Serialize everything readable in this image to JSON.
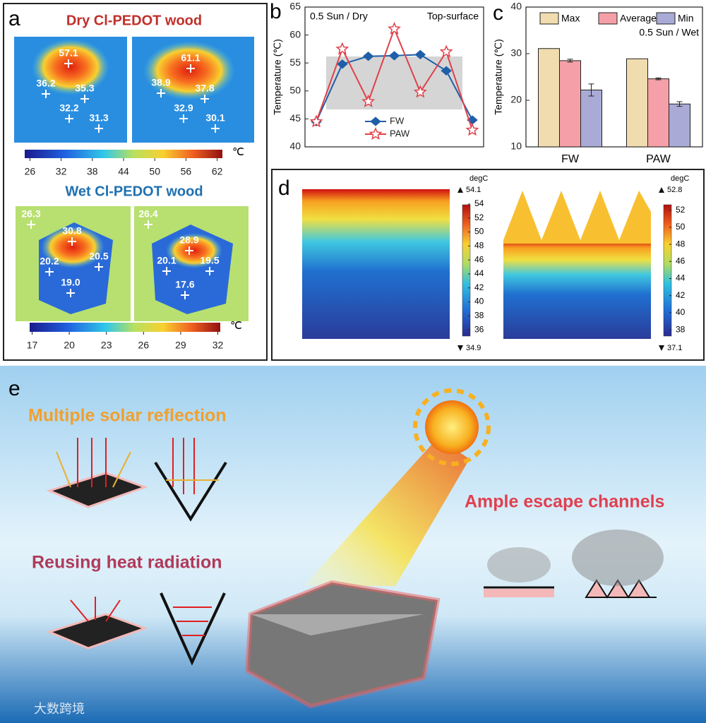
{
  "panel_a": {
    "label": "a",
    "dry": {
      "title": "Dry Cl-PEDOT wood",
      "readings": [
        "57.1",
        "36.2",
        "35.3",
        "32.2",
        "31.3",
        "61.1",
        "38.9",
        "37.8",
        "32.9",
        "30.1"
      ],
      "colorbar": {
        "lim": [
          25,
          63
        ],
        "ticks": [
          26,
          32,
          38,
          44,
          50,
          56,
          62
        ],
        "unit": "℃"
      }
    },
    "wet": {
      "title": "Wet Cl-PEDOT wood",
      "readings": [
        "26.3",
        "30.8",
        "20.2",
        "20.5",
        "19.0",
        "26.4",
        "28.9",
        "20.1",
        "19.5",
        "17.6"
      ],
      "colorbar": {
        "lim": [
          16.8,
          32.2
        ],
        "ticks": [
          17,
          20,
          23,
          26,
          29,
          32
        ],
        "unit": "℃"
      }
    }
  },
  "chart_data": [
    {
      "type": "line",
      "panel_label": "b",
      "annotations": [
        "0.5 Sun / Dry",
        "Top-surface"
      ],
      "y_label": "Temperature (℃)",
      "categories": [
        null,
        null,
        null,
        null,
        null,
        null,
        null
      ],
      "series": [
        {
          "name": "FW",
          "color": "#1f5fa8",
          "marker": "diamond",
          "values": [
            44.5,
            54.8,
            56.2,
            56.3,
            56.5,
            53.6,
            44.8
          ]
        },
        {
          "name": "PAW",
          "color": "#e0404a",
          "marker": "star",
          "values": [
            44.5,
            57.5,
            48.1,
            61.1,
            49.8,
            57.0,
            43.0
          ]
        }
      ],
      "ylim": [
        40,
        65
      ],
      "yticks": [
        40,
        45,
        50,
        55,
        60,
        65
      ]
    },
    {
      "type": "bar",
      "panel_label": "c",
      "annotations": [
        "0.5 Sun / Wet"
      ],
      "y_label": "Temperature (℃)",
      "categories": [
        "FW",
        "PAW"
      ],
      "series": [
        {
          "name": "Max",
          "color": "#f0dcae",
          "values": [
            31.1,
            28.9
          ]
        },
        {
          "name": "Average",
          "color": "#f5a0a8",
          "values": [
            28.5,
            24.6
          ],
          "errors": [
            0.3,
            0.2
          ]
        },
        {
          "name": "Min",
          "color": "#a9abd6",
          "values": [
            22.2,
            19.2
          ],
          "errors": [
            1.3,
            0.5
          ]
        }
      ],
      "ylim": [
        10,
        40
      ],
      "yticks": [
        10,
        20,
        30,
        40
      ]
    }
  ],
  "panel_d": {
    "label": "d",
    "maps": [
      {
        "unit": "degC",
        "max": 54.1,
        "min": 34.9,
        "ticks": [
          36,
          38,
          40,
          42,
          44,
          46,
          48,
          50,
          52,
          54
        ]
      },
      {
        "unit": "degC",
        "max": 52.8,
        "min": 37.1,
        "ticks": [
          38,
          40,
          42,
          44,
          46,
          48,
          50,
          52
        ]
      }
    ]
  },
  "panel_e": {
    "label": "e",
    "texts": [
      "Multiple solar reflection",
      "Reusing heat radiation",
      "Ample escape channels"
    ]
  },
  "watermark": "大数跨境"
}
